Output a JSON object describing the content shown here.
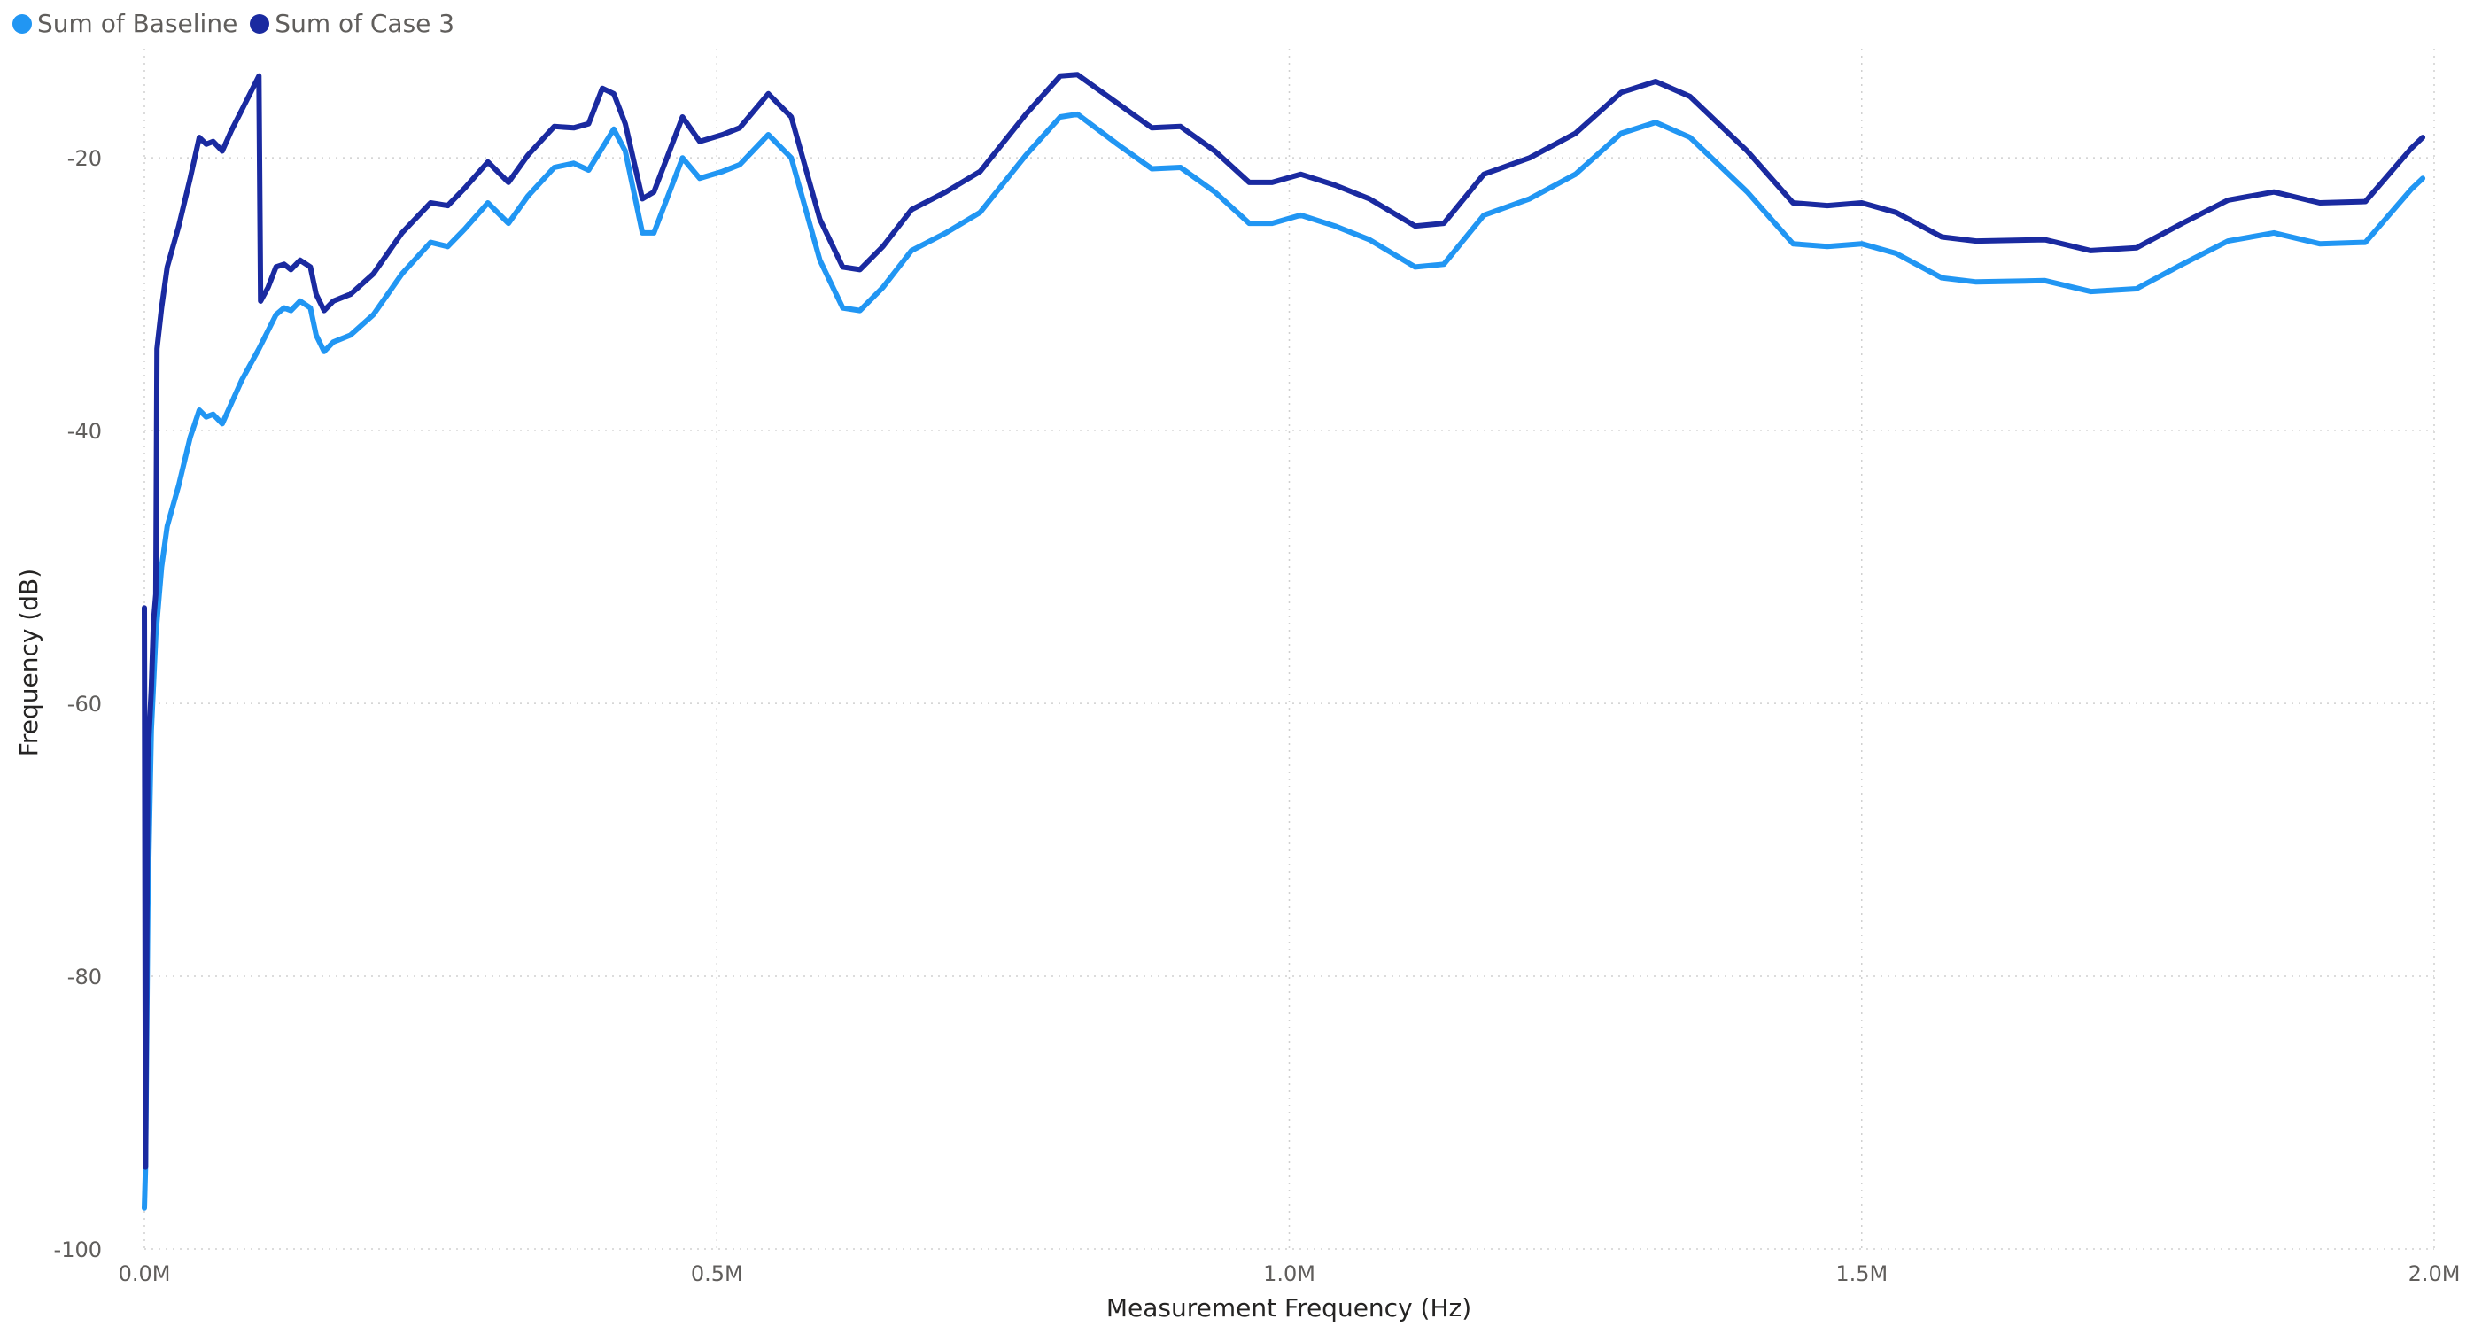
{
  "legend": {
    "items": [
      {
        "label": "Sum of Baseline",
        "color": "#2196f3"
      },
      {
        "label": "Sum of Case 3",
        "color": "#1a2aa0"
      }
    ]
  },
  "chart_data": {
    "type": "line",
    "title": "",
    "xlabel": "Measurement Frequency (Hz)",
    "ylabel": "Frequency (dB)",
    "xlim": [
      0,
      2000000
    ],
    "ylim": [
      -100,
      -12
    ],
    "x_ticks": [
      {
        "value": 0,
        "label": "0.0M"
      },
      {
        "value": 500000,
        "label": "0.5M"
      },
      {
        "value": 1000000,
        "label": "1.0M"
      },
      {
        "value": 1500000,
        "label": "1.5M"
      },
      {
        "value": 2000000,
        "label": "2.0M"
      }
    ],
    "y_ticks": [
      {
        "value": -20,
        "label": "-20"
      },
      {
        "value": -40,
        "label": "-40"
      },
      {
        "value": -60,
        "label": "-60"
      },
      {
        "value": -80,
        "label": "-80"
      },
      {
        "value": -100,
        "label": "-100"
      }
    ],
    "grid": true,
    "legend_position": "top-left",
    "series": [
      {
        "name": "Sum of Baseline",
        "color": "#2196f3",
        "points": [
          [
            0,
            -97
          ],
          [
            1000,
            -94
          ],
          [
            3000,
            -75
          ],
          [
            6000,
            -62
          ],
          [
            10000,
            -55
          ],
          [
            15000,
            -50
          ],
          [
            20000,
            -47
          ],
          [
            30000,
            -44
          ],
          [
            40000,
            -40.5
          ],
          [
            48000,
            -38.5
          ],
          [
            54000,
            -39
          ],
          [
            60000,
            -38.8
          ],
          [
            68000,
            -39.5
          ],
          [
            76000,
            -38
          ],
          [
            85000,
            -36.3
          ],
          [
            100000,
            -34
          ],
          [
            115000,
            -31.5
          ],
          [
            122000,
            -31
          ],
          [
            128000,
            -31.2
          ],
          [
            136000,
            -30.5
          ],
          [
            145000,
            -31
          ],
          [
            150000,
            -33
          ],
          [
            157000,
            -34.2
          ],
          [
            165000,
            -33.5
          ],
          [
            180000,
            -33
          ],
          [
            200000,
            -31.5
          ],
          [
            225000,
            -28.5
          ],
          [
            250000,
            -26.2
          ],
          [
            265000,
            -26.5
          ],
          [
            280000,
            -25.2
          ],
          [
            300000,
            -23.3
          ],
          [
            318000,
            -24.8
          ],
          [
            335000,
            -22.8
          ],
          [
            358000,
            -20.7
          ],
          [
            375000,
            -20.4
          ],
          [
            388000,
            -20.9
          ],
          [
            410000,
            -17.9
          ],
          [
            420000,
            -19.5
          ],
          [
            435000,
            -25.5
          ],
          [
            445000,
            -25.5
          ],
          [
            470000,
            -20
          ],
          [
            485000,
            -21.5
          ],
          [
            505000,
            -21
          ],
          [
            520000,
            -20.5
          ],
          [
            545000,
            -18.3
          ],
          [
            565000,
            -20
          ],
          [
            590000,
            -27.5
          ],
          [
            610000,
            -31
          ],
          [
            625000,
            -31.2
          ],
          [
            645000,
            -29.5
          ],
          [
            670000,
            -26.8
          ],
          [
            700000,
            -25.5
          ],
          [
            730000,
            -24
          ],
          [
            770000,
            -19.8
          ],
          [
            800000,
            -17
          ],
          [
            815000,
            -16.8
          ],
          [
            850000,
            -19
          ],
          [
            880000,
            -20.8
          ],
          [
            905000,
            -20.7
          ],
          [
            935000,
            -22.5
          ],
          [
            965000,
            -24.8
          ],
          [
            985000,
            -24.8
          ],
          [
            1010000,
            -24.2
          ],
          [
            1040000,
            -25
          ],
          [
            1070000,
            -26
          ],
          [
            1110000,
            -28
          ],
          [
            1135000,
            -27.8
          ],
          [
            1170000,
            -24.2
          ],
          [
            1210000,
            -23
          ],
          [
            1250000,
            -21.2
          ],
          [
            1290000,
            -18.2
          ],
          [
            1320000,
            -17.4
          ],
          [
            1350000,
            -18.5
          ],
          [
            1400000,
            -22.5
          ],
          [
            1440000,
            -26.3
          ],
          [
            1470000,
            -26.5
          ],
          [
            1500000,
            -26.3
          ],
          [
            1530000,
            -27
          ],
          [
            1570000,
            -28.8
          ],
          [
            1600000,
            -29.1
          ],
          [
            1660000,
            -29
          ],
          [
            1700000,
            -29.8
          ],
          [
            1740000,
            -29.6
          ],
          [
            1780000,
            -27.8
          ],
          [
            1820000,
            -26.1
          ],
          [
            1860000,
            -25.5
          ],
          [
            1900000,
            -26.3
          ],
          [
            1940000,
            -26.2
          ],
          [
            1980000,
            -22.3
          ],
          [
            1990000,
            -21.5
          ]
        ]
      },
      {
        "name": "Sum of Case 3",
        "color": "#1a2aa0",
        "points": [
          [
            0,
            -53
          ],
          [
            1000,
            -94
          ],
          [
            3000,
            -64
          ],
          [
            6000,
            -59
          ],
          [
            8000,
            -54
          ],
          [
            10000,
            -52
          ],
          [
            11000,
            -34
          ],
          [
            15000,
            -31
          ],
          [
            20000,
            -28
          ],
          [
            30000,
            -25
          ],
          [
            40000,
            -21.5
          ],
          [
            48000,
            -18.5
          ],
          [
            54000,
            -19
          ],
          [
            60000,
            -18.8
          ],
          [
            68000,
            -19.5
          ],
          [
            76000,
            -18
          ],
          [
            85000,
            -16.5
          ],
          [
            100000,
            -14
          ],
          [
            101500,
            -30.5
          ],
          [
            108000,
            -29.5
          ],
          [
            115000,
            -28
          ],
          [
            122000,
            -27.8
          ],
          [
            128000,
            -28.2
          ],
          [
            136000,
            -27.5
          ],
          [
            145000,
            -28
          ],
          [
            150000,
            -30
          ],
          [
            157000,
            -31.2
          ],
          [
            165000,
            -30.5
          ],
          [
            180000,
            -30
          ],
          [
            200000,
            -28.5
          ],
          [
            225000,
            -25.5
          ],
          [
            250000,
            -23.3
          ],
          [
            265000,
            -23.5
          ],
          [
            280000,
            -22.2
          ],
          [
            300000,
            -20.3
          ],
          [
            318000,
            -21.8
          ],
          [
            335000,
            -19.8
          ],
          [
            358000,
            -17.7
          ],
          [
            375000,
            -17.8
          ],
          [
            388000,
            -17.5
          ],
          [
            400000,
            -14.9
          ],
          [
            410000,
            -15.3
          ],
          [
            420000,
            -17.5
          ],
          [
            435000,
            -23
          ],
          [
            445000,
            -22.5
          ],
          [
            470000,
            -17
          ],
          [
            485000,
            -18.8
          ],
          [
            505000,
            -18.3
          ],
          [
            520000,
            -17.8
          ],
          [
            545000,
            -15.3
          ],
          [
            565000,
            -17
          ],
          [
            590000,
            -24.5
          ],
          [
            610000,
            -28
          ],
          [
            625000,
            -28.2
          ],
          [
            645000,
            -26.5
          ],
          [
            670000,
            -23.8
          ],
          [
            700000,
            -22.5
          ],
          [
            730000,
            -21
          ],
          [
            770000,
            -16.8
          ],
          [
            800000,
            -14
          ],
          [
            815000,
            -13.9
          ],
          [
            850000,
            -16
          ],
          [
            880000,
            -17.8
          ],
          [
            905000,
            -17.7
          ],
          [
            935000,
            -19.5
          ],
          [
            965000,
            -21.8
          ],
          [
            985000,
            -21.8
          ],
          [
            1010000,
            -21.2
          ],
          [
            1040000,
            -22
          ],
          [
            1070000,
            -23
          ],
          [
            1110000,
            -25
          ],
          [
            1135000,
            -24.8
          ],
          [
            1170000,
            -21.2
          ],
          [
            1210000,
            -20
          ],
          [
            1250000,
            -18.2
          ],
          [
            1290000,
            -15.2
          ],
          [
            1320000,
            -14.4
          ],
          [
            1350000,
            -15.5
          ],
          [
            1400000,
            -19.5
          ],
          [
            1440000,
            -23.3
          ],
          [
            1470000,
            -23.5
          ],
          [
            1500000,
            -23.3
          ],
          [
            1530000,
            -24
          ],
          [
            1570000,
            -25.8
          ],
          [
            1600000,
            -26.1
          ],
          [
            1660000,
            -26
          ],
          [
            1700000,
            -26.8
          ],
          [
            1740000,
            -26.6
          ],
          [
            1780000,
            -24.8
          ],
          [
            1820000,
            -23.1
          ],
          [
            1860000,
            -22.5
          ],
          [
            1900000,
            -23.3
          ],
          [
            1940000,
            -23.2
          ],
          [
            1980000,
            -19.3
          ],
          [
            1990000,
            -18.5
          ]
        ]
      }
    ]
  }
}
